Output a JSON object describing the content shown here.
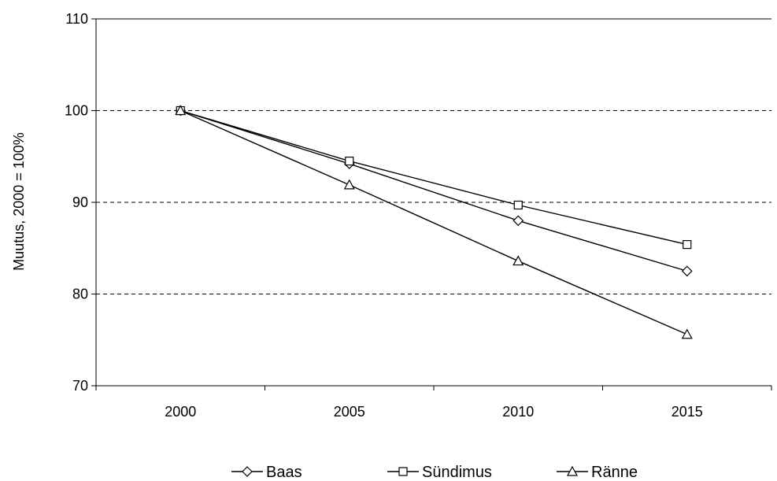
{
  "chart_data": {
    "type": "line",
    "title": "",
    "xlabel": "",
    "ylabel": "Muutus, 2000 = 100%",
    "categories": [
      "2000",
      "2005",
      "2010",
      "2015"
    ],
    "y_ticks": [
      "70",
      "80",
      "90",
      "100",
      "110"
    ],
    "ylim": [
      70,
      110
    ],
    "grid": "horizontal dashed",
    "legend_position": "bottom",
    "series": [
      {
        "name": "Baas",
        "marker": "diamond",
        "values": [
          100,
          94.2,
          88.0,
          82.5
        ]
      },
      {
        "name": "Sündimus",
        "marker": "square",
        "values": [
          100,
          94.5,
          89.7,
          85.4
        ]
      },
      {
        "name": "Ränne",
        "marker": "triangle",
        "values": [
          100,
          91.9,
          83.6,
          75.6
        ]
      }
    ],
    "colors": {
      "line": "#000000",
      "marker_fill": "#ffffff",
      "grid": "#000000"
    }
  }
}
